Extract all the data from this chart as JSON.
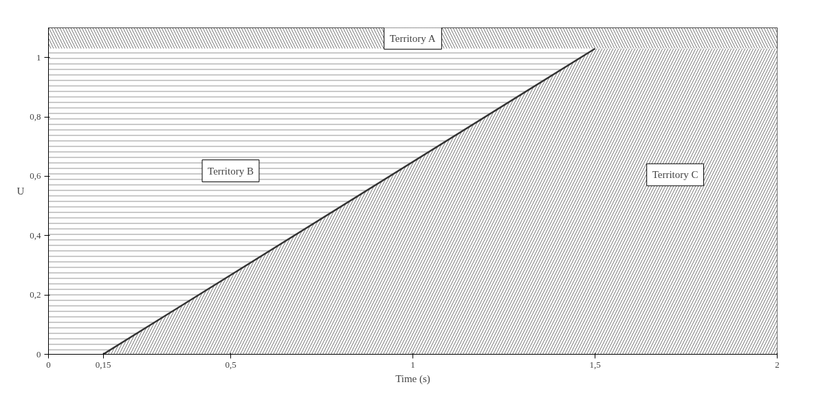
{
  "chart_data": {
    "type": "area",
    "xlabel": "Time (s)",
    "ylabel": "U",
    "series": [
      {
        "color": "#333333",
        "x": [
          0.15,
          1.5,
          2
        ],
        "values": [
          0,
          1.03,
          1.03
        ]
      }
    ],
    "xlim": [
      0,
      2
    ],
    "ylim": [
      0,
      1.1
    ],
    "xticks": [
      0,
      {
        "value": 0.15,
        "label": "0,15"
      },
      {
        "value": 0.5,
        "label": "0,5"
      },
      1,
      {
        "value": 1.5,
        "label": "1,5"
      },
      2
    ],
    "yticks": [
      0,
      {
        "value": 0.2,
        "label": "0,2"
      },
      {
        "value": 0.4,
        "label": "0,4"
      },
      {
        "value": 0.6,
        "label": "0,6"
      },
      {
        "value": 0.8,
        "label": "0,8"
      },
      1
    ],
    "bands": [
      {
        "axis": "y",
        "from": 1.03,
        "to": 1.1,
        "label": "Territory A",
        "color": "#555555"
      },
      {
        "axis": "y",
        "from": 0,
        "to": 1.03,
        "label": "Territory B",
        "color": "#777777"
      }
    ],
    "annotations": [
      "Territory C"
    ],
    "grid": false
  }
}
